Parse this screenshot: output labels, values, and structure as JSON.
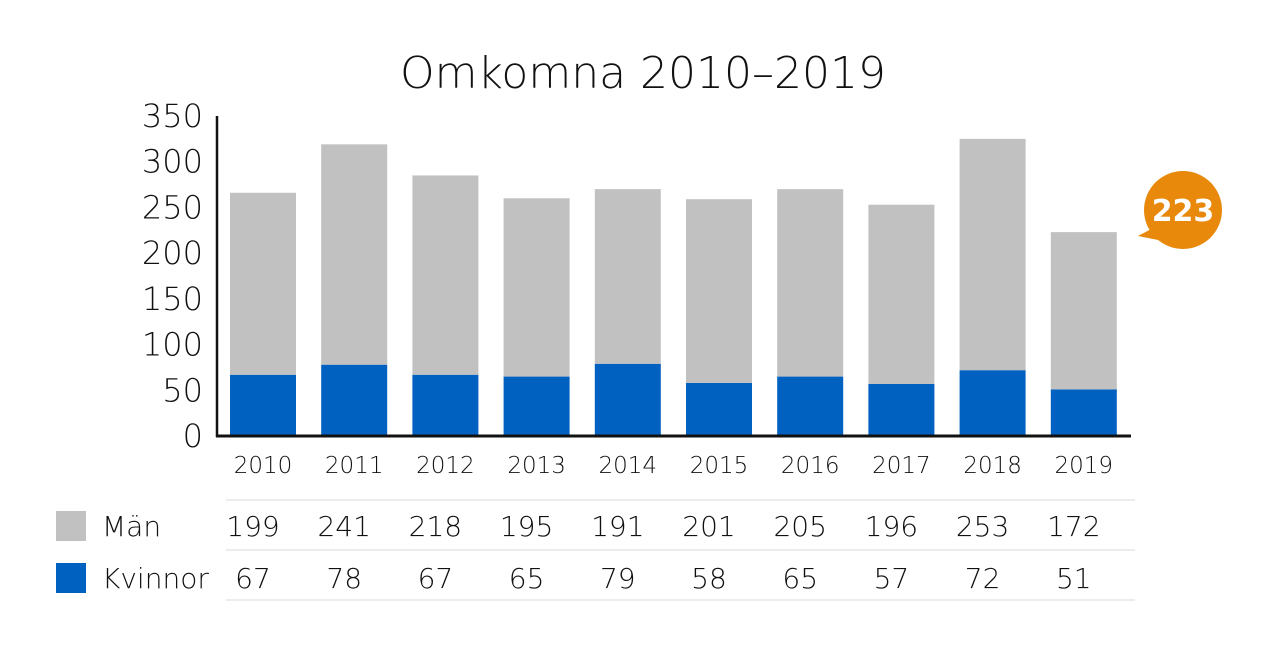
{
  "chart_data": {
    "type": "bar",
    "stacked": true,
    "title": "Omkomna 2010–2019",
    "categories": [
      "2010",
      "2011",
      "2012",
      "2013",
      "2014",
      "2015",
      "2016",
      "2017",
      "2018",
      "2019"
    ],
    "series": [
      {
        "name": "Kvinnor",
        "color": "#0061c1",
        "values": [
          67,
          78,
          67,
          65,
          79,
          58,
          65,
          57,
          72,
          51
        ]
      },
      {
        "name": "Män",
        "color": "#c0c1c0",
        "values": [
          199,
          241,
          218,
          195,
          191,
          201,
          205,
          196,
          253,
          172
        ]
      }
    ],
    "yticks": [
      "0",
      "50",
      "100",
      "150",
      "200",
      "250",
      "300",
      "350"
    ],
    "ylim": [
      0,
      350
    ],
    "grid": false,
    "legend": "table-below",
    "table": {
      "rows": [
        {
          "label": "Män",
          "color": "#c0c1c0",
          "values": [
            "199",
            "241",
            "218",
            "195",
            "191",
            "201",
            "205",
            "196",
            "253",
            "172"
          ]
        },
        {
          "label": "Kvinnor",
          "color": "#0061c1",
          "values": [
            "67",
            "78",
            "67",
            "65",
            "79",
            "58",
            "65",
            "57",
            "72",
            "51"
          ]
        }
      ]
    },
    "annotation": {
      "text": "223",
      "color": "#e8890c",
      "category": "2019"
    }
  }
}
